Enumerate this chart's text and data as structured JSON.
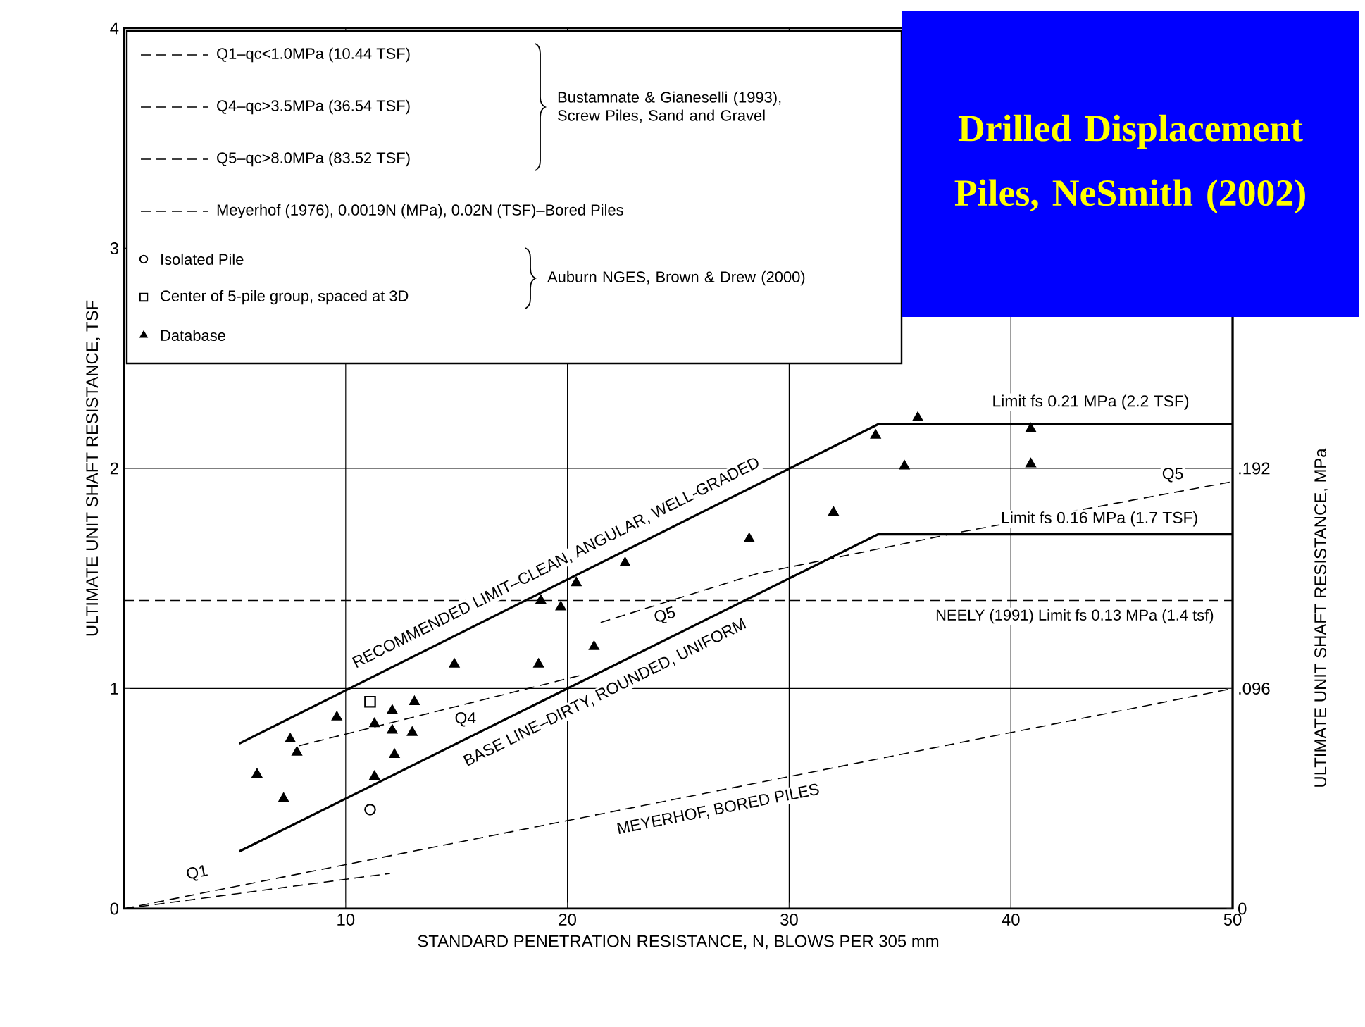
{
  "chart_data": {
    "type": "line",
    "title": "Drilled Displacement Piles, NeSmith (2002)",
    "xlabel": "STANDARD PENETRATION RESISTANCE, N, BLOWS PER 305 mm",
    "ylabel": "ULTIMATE UNIT SHAFT RESISTANCE, TSF",
    "y2label": "ULTIMATE UNIT SHAFT RESISTANCE, MPa",
    "xlim": [
      0,
      50
    ],
    "xticks": [
      10,
      20,
      30,
      40,
      50
    ],
    "ylim": [
      0,
      4
    ],
    "yticks": [
      0,
      1,
      2,
      3,
      4
    ],
    "y2lim": [
      0,
      0.384
    ],
    "y2ticks": [
      0,
      {
        "value": 0.096,
        "label": ".096"
      },
      {
        "value": 0.192,
        "label": ".192"
      }
    ],
    "grid": true,
    "legend": "top left",
    "series": [
      {
        "name": "Q1–qc<1.0MPa (10.44 TSF)",
        "line_style": "dashed",
        "color": "#000000",
        "x": [
          0,
          12
        ],
        "values": [
          0,
          0.16
        ]
      },
      {
        "name": "Q4–qc>3.5MPa (36.54 TSF)",
        "line_style": "dashed",
        "color": "#000000",
        "x": [
          7.9,
          20.6
        ],
        "values": [
          0.74,
          1.06
        ]
      },
      {
        "name": "Q5–qc>8.0MPa (83.52 TSF)",
        "line_style": "dashed",
        "color": "#000000",
        "x": [
          21.5,
          28.5,
          37.7,
          50
        ],
        "values": [
          1.3,
          1.52,
          1.71,
          1.94
        ]
      },
      {
        "name": "Meyerhof (1976), 0.0019N (MPa), 0.02N (TSF)–Bored Piles",
        "line_style": "dashed",
        "color": "#000000",
        "x": [
          0,
          50
        ],
        "values": [
          0,
          1.0
        ]
      },
      {
        "line_style": "solid",
        "color": "#000000",
        "x": [
          5.2,
          34,
          50
        ],
        "values": [
          0.75,
          2.2,
          2.2
        ]
      },
      {
        "line_style": "solid",
        "color": "#000000",
        "x": [
          5.2,
          34,
          50
        ],
        "values": [
          0.26,
          1.7,
          1.7
        ]
      },
      {
        "name": "Isolated Pile",
        "type": "scatter",
        "marker": "circle",
        "color": "#000000",
        "x": [
          11.1
        ],
        "values": [
          0.45
        ]
      },
      {
        "name": "Center of 5-pile group, spaced at 3D",
        "type": "scatter",
        "marker": "square",
        "color": "#000000",
        "x": [
          11.1
        ],
        "values": [
          0.94
        ]
      },
      {
        "name": "Database",
        "type": "scatter",
        "marker": "triangle",
        "color": "#000000",
        "x": [
          6.0,
          7.2,
          7.5,
          7.8,
          9.6,
          11.3,
          11.3,
          12.1,
          12.1,
          12.2,
          13.0,
          13.1,
          14.9,
          18.7,
          18.8,
          19.7,
          20.4,
          21.2,
          22.6,
          28.2,
          32.0,
          33.9,
          35.8,
          35.2,
          40.9,
          40.9
        ],
        "values": [
          0.61,
          0.5,
          0.77,
          0.71,
          0.87,
          0.84,
          0.6,
          0.9,
          0.81,
          0.7,
          0.8,
          0.94,
          1.11,
          1.11,
          1.4,
          1.37,
          1.48,
          1.19,
          1.57,
          1.68,
          1.8,
          2.15,
          2.23,
          2.01,
          2.18,
          2.02
        ]
      }
    ],
    "ref_lines": [
      {
        "axis": "y",
        "value": 1.4,
        "label": "NEELY (1991) Limit fs 0.13 MPa (1.4 tsf)",
        "line_style": "dashed",
        "color": "#000000"
      }
    ],
    "annotations": [
      "Bustamnate & Gianeselli (1993), Screw Piles, Sand and Gravel",
      "Auburn NGES, Brown & Drew (2000)",
      "RECOMMENDED LIMIT–CLEAN, ANGULAR, WELL-GRADED",
      "BASE LINE–DIRTY, ROUNDED, UNIFORM",
      "MEYERHOF, BORED PILES",
      "Limit fs 0.21 MPa (2.2 TSF)",
      "Limit fs 0.16 MPa (1.7 TSF)",
      "Q1",
      "Q4",
      "Q5",
      "Q5"
    ]
  }
}
